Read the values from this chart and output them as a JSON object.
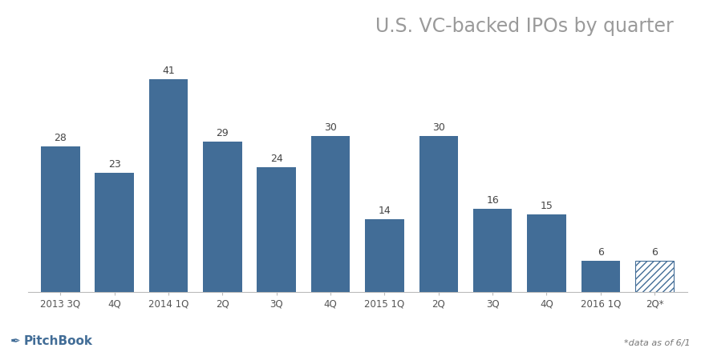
{
  "title": "U.S. VC-backed IPOs by quarter",
  "categories": [
    "2013 3Q",
    "4Q",
    "2014 1Q",
    "2Q",
    "3Q",
    "4Q",
    "2015 1Q",
    "2Q",
    "3Q",
    "4Q",
    "2016 1Q",
    "2Q*"
  ],
  "values": [
    28,
    23,
    41,
    29,
    24,
    30,
    14,
    30,
    16,
    15,
    6,
    6
  ],
  "bar_color": "#426d97",
  "background_color": "#ffffff",
  "title_color": "#9a9a9a",
  "title_fontsize": 17,
  "label_fontsize": 9,
  "tick_fontsize": 8.5,
  "annotation_note": "*data as of 6/1",
  "pitchbook_text": "PitchBook",
  "ylim": [
    0,
    48
  ],
  "bar_width": 0.72
}
